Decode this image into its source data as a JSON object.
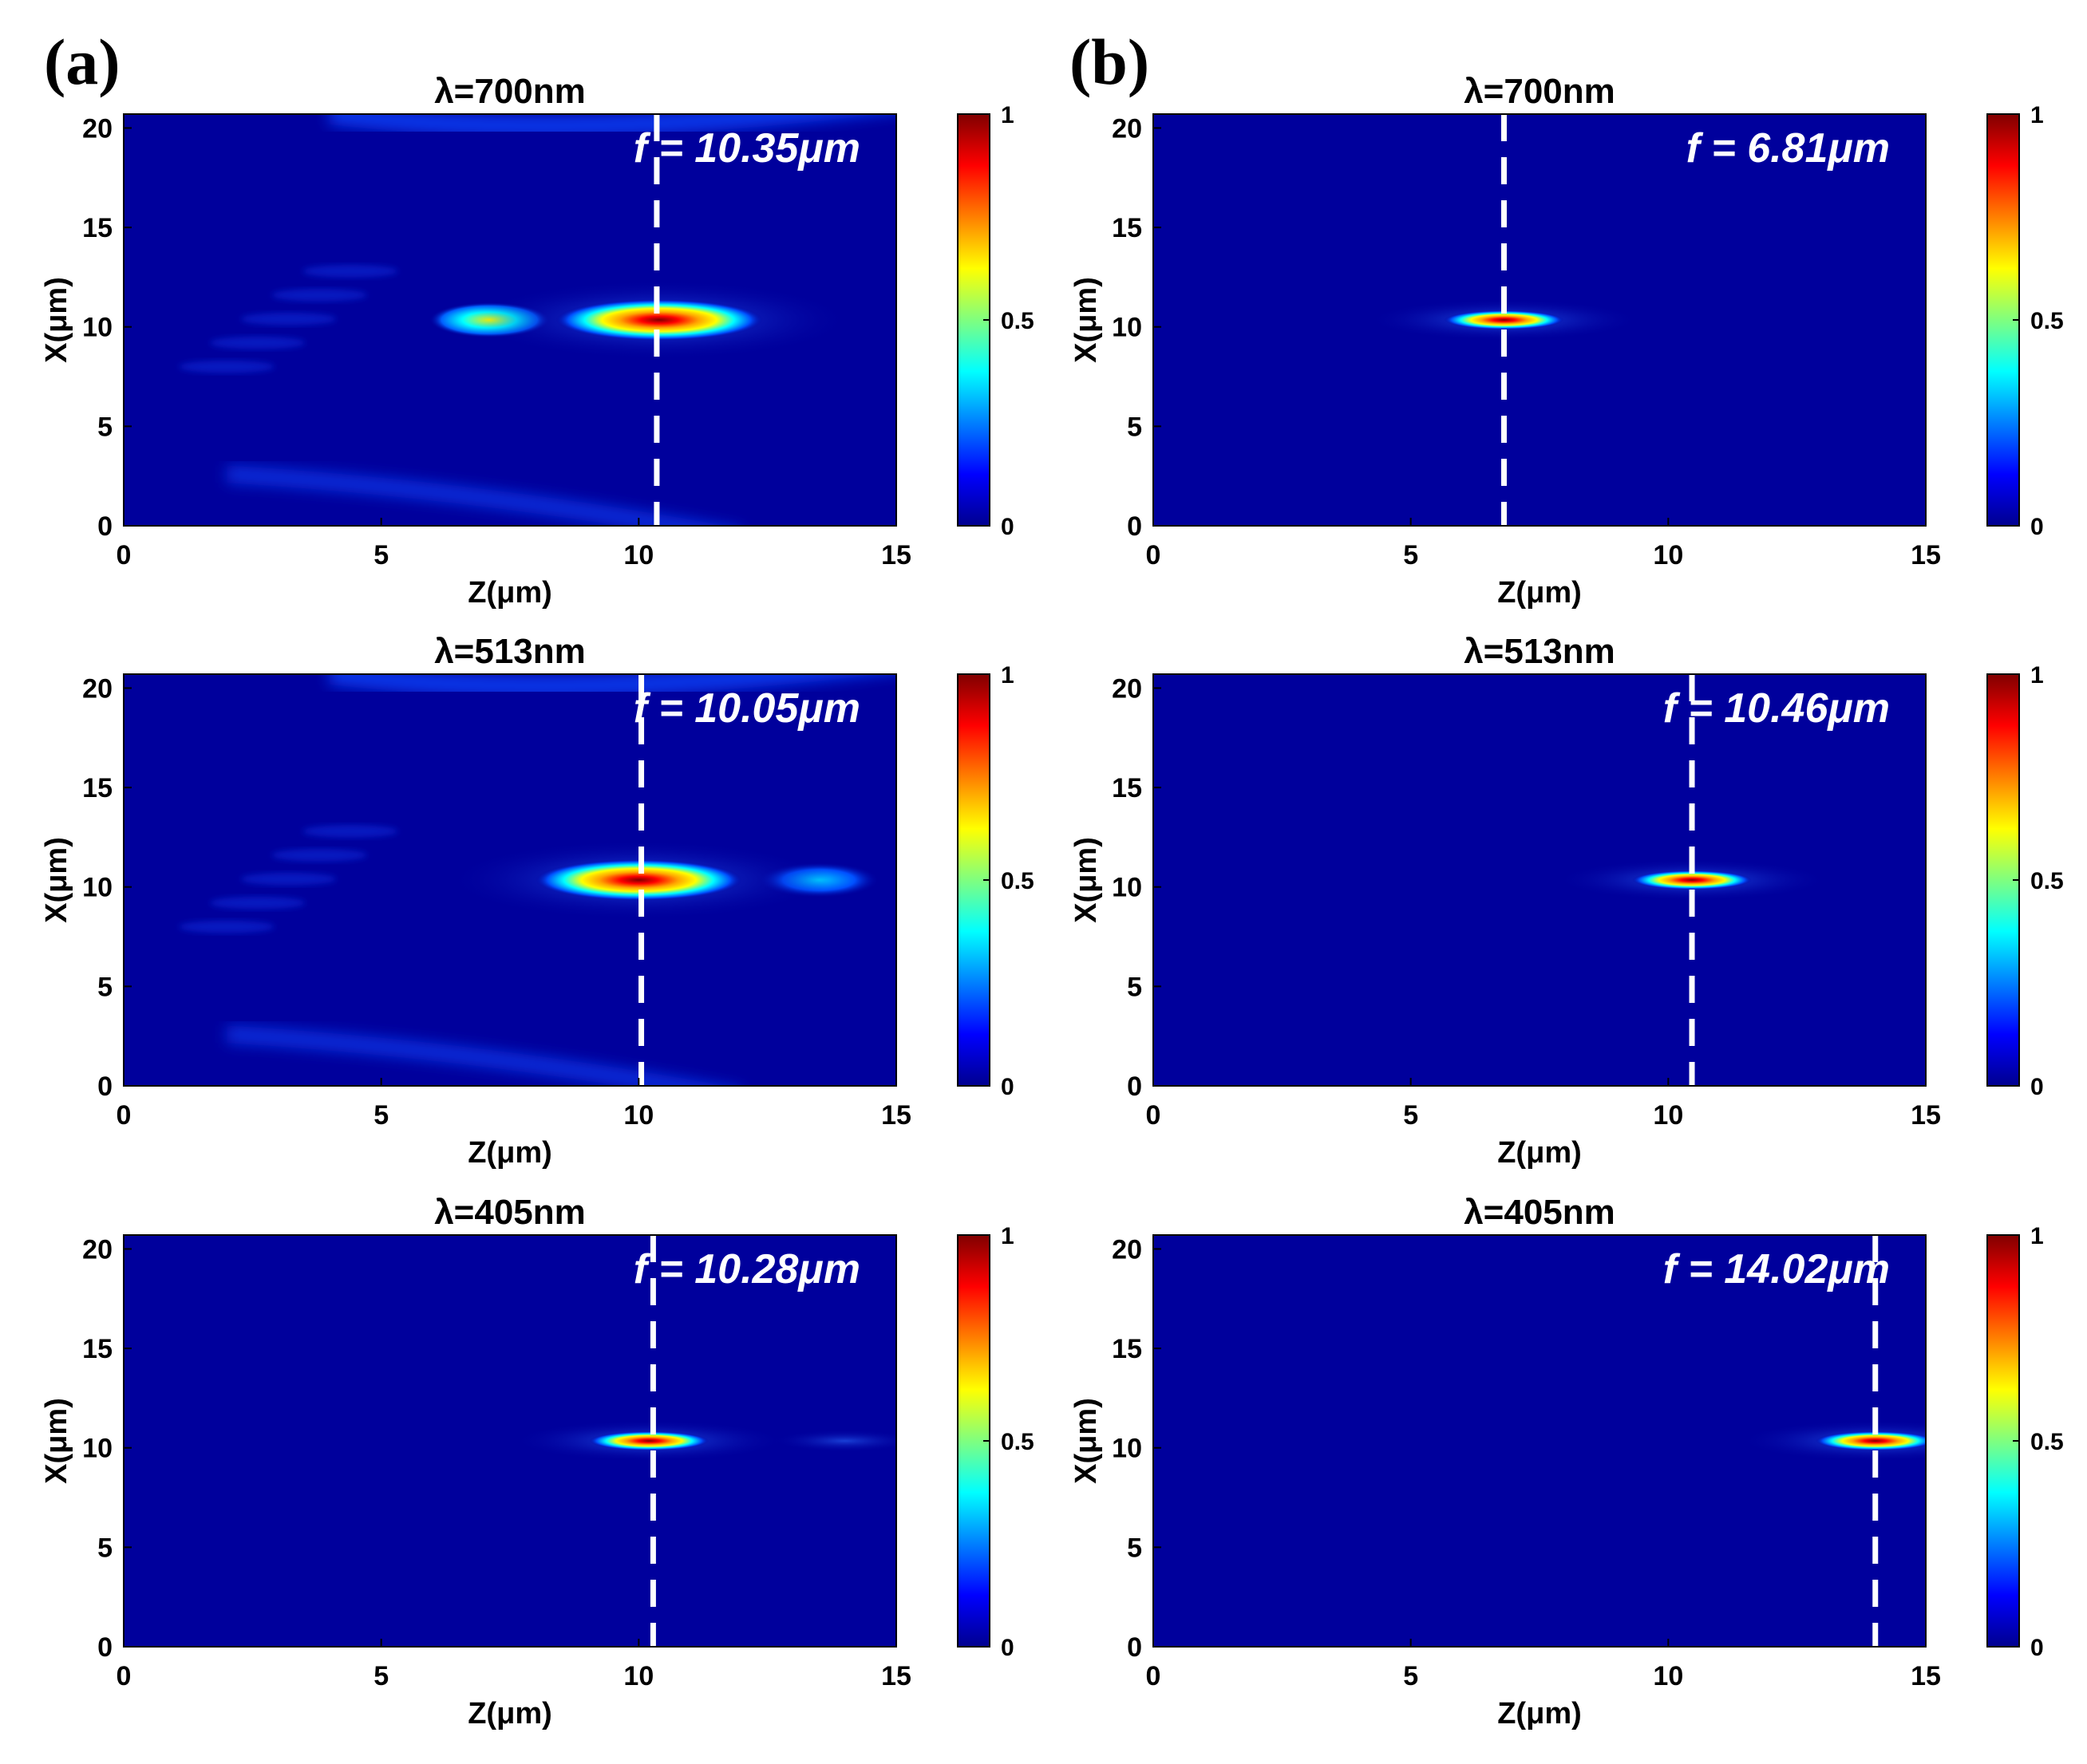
{
  "figure": {
    "panel_labels": [
      "(a)",
      "(b)"
    ]
  },
  "chart_data": [
    {
      "type": "heatmap",
      "panel": "(a)",
      "title": "λ=700nm",
      "xlabel": "Z(μm)",
      "ylabel": "X(μm)",
      "xlim": [
        0,
        15
      ],
      "ylim": [
        0,
        20.7
      ],
      "xticks": [
        "0",
        "5",
        "10",
        "15"
      ],
      "yticks": [
        "0",
        "5",
        "10",
        "15",
        "20"
      ],
      "colorbar": {
        "range": [
          0,
          1
        ],
        "ticks": [
          "0",
          "0.5",
          "1"
        ],
        "colormap": "jet"
      },
      "focal_annotation": "f = 10.35μm",
      "focal_length_um": 10.35,
      "focus_center": {
        "z": 10.4,
        "x": 10.35
      },
      "secondary_peaks": [
        {
          "z": 7.1,
          "x": 10.35,
          "intensity": 0.55
        }
      ],
      "pattern": "strong"
    },
    {
      "type": "heatmap",
      "panel": "(b)",
      "title": "λ=700nm",
      "xlabel": "Z(μm)",
      "ylabel": "X(μm)",
      "xlim": [
        0,
        15
      ],
      "ylim": [
        0,
        20.7
      ],
      "xticks": [
        "0",
        "5",
        "10",
        "15"
      ],
      "yticks": [
        "0",
        "5",
        "10",
        "15",
        "20"
      ],
      "colorbar": {
        "range": [
          0,
          1
        ],
        "ticks": [
          "0",
          "0.5",
          "1"
        ],
        "colormap": "jet"
      },
      "focal_annotation": "f = 6.81μm",
      "focal_length_um": 6.81,
      "focus_center": {
        "z": 6.81,
        "x": 10.35
      },
      "secondary_peaks": [],
      "pattern": "clean"
    },
    {
      "type": "heatmap",
      "panel": "(a)",
      "title": "λ=513nm",
      "xlabel": "Z(μm)",
      "ylabel": "X(μm)",
      "xlim": [
        0,
        15
      ],
      "ylim": [
        0,
        20.7
      ],
      "xticks": [
        "0",
        "5",
        "10",
        "15"
      ],
      "yticks": [
        "0",
        "5",
        "10",
        "15",
        "20"
      ],
      "colorbar": {
        "range": [
          0,
          1
        ],
        "ticks": [
          "0",
          "0.5",
          "1"
        ],
        "colormap": "jet"
      },
      "focal_annotation": "f = 10.05μm",
      "focal_length_um": 10.05,
      "focus_center": {
        "z": 10.0,
        "x": 10.35
      },
      "secondary_peaks": [
        {
          "z": 13.5,
          "x": 10.35,
          "intensity": 0.4
        }
      ],
      "pattern": "strong"
    },
    {
      "type": "heatmap",
      "panel": "(b)",
      "title": "λ=513nm",
      "xlabel": "Z(μm)",
      "ylabel": "X(μm)",
      "xlim": [
        0,
        15
      ],
      "ylim": [
        0,
        20.7
      ],
      "xticks": [
        "0",
        "5",
        "10",
        "15"
      ],
      "yticks": [
        "0",
        "5",
        "10",
        "15",
        "20"
      ],
      "colorbar": {
        "range": [
          0,
          1
        ],
        "ticks": [
          "0",
          "0.5",
          "1"
        ],
        "colormap": "jet"
      },
      "focal_annotation": "f = 10.46μm",
      "focal_length_um": 10.46,
      "focus_center": {
        "z": 10.46,
        "x": 10.35
      },
      "secondary_peaks": [],
      "pattern": "clean"
    },
    {
      "type": "heatmap",
      "panel": "(a)",
      "title": "λ=405nm",
      "xlabel": "Z(μm)",
      "ylabel": "X(μm)",
      "xlim": [
        0,
        15
      ],
      "ylim": [
        0,
        20.7
      ],
      "xticks": [
        "0",
        "5",
        "10",
        "15"
      ],
      "yticks": [
        "0",
        "5",
        "10",
        "15",
        "20"
      ],
      "colorbar": {
        "range": [
          0,
          1
        ],
        "ticks": [
          "0",
          "0.5",
          "1"
        ],
        "colormap": "jet"
      },
      "focal_annotation": "f = 10.28μm",
      "focal_length_um": 10.28,
      "focus_center": {
        "z": 10.2,
        "x": 10.35
      },
      "secondary_peaks": [],
      "pattern": "faint"
    },
    {
      "type": "heatmap",
      "panel": "(b)",
      "title": "λ=405nm",
      "xlabel": "Z(μm)",
      "ylabel": "X(μm)",
      "xlim": [
        0,
        15
      ],
      "ylim": [
        0,
        20.7
      ],
      "xticks": [
        "0",
        "5",
        "10",
        "15"
      ],
      "yticks": [
        "0",
        "5",
        "10",
        "15",
        "20"
      ],
      "colorbar": {
        "range": [
          0,
          1
        ],
        "ticks": [
          "0",
          "0.5",
          "1"
        ],
        "colormap": "jet"
      },
      "focal_annotation": "f = 14.02μm",
      "focal_length_um": 14.02,
      "focus_center": {
        "z": 14.02,
        "x": 10.35
      },
      "secondary_peaks": [],
      "pattern": "clean"
    }
  ]
}
